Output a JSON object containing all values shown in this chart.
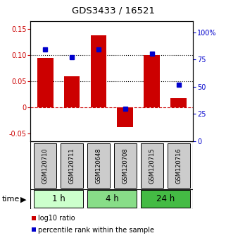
{
  "title": "GDS3433 / 16521",
  "samples": [
    "GSM120710",
    "GSM120711",
    "GSM120648",
    "GSM120708",
    "GSM120715",
    "GSM120716"
  ],
  "log10_ratio": [
    0.095,
    0.06,
    0.138,
    -0.038,
    0.1,
    0.018
  ],
  "percentile_rank": [
    84,
    77,
    84,
    30,
    80,
    52
  ],
  "bar_color": "#cc0000",
  "dot_color": "#0000cc",
  "ylim_left": [
    -0.065,
    0.165
  ],
  "ylim_right": [
    0,
    110
  ],
  "yticks_left": [
    -0.05,
    0,
    0.05,
    0.1,
    0.15
  ],
  "ytick_labels_left": [
    "-0.05",
    "0",
    "0.05",
    "0.10",
    "0.15"
  ],
  "yticks_right": [
    0,
    25,
    50,
    75,
    100
  ],
  "ytick_labels_right": [
    "0",
    "25",
    "50",
    "75",
    "100%"
  ],
  "groups": [
    {
      "label": "1 h",
      "samples": [
        0,
        1
      ],
      "color": "#ccffcc"
    },
    {
      "label": "4 h",
      "samples": [
        2,
        3
      ],
      "color": "#88dd88"
    },
    {
      "label": "24 h",
      "samples": [
        4,
        5
      ],
      "color": "#44bb44"
    }
  ],
  "time_label": "time",
  "legend_bar_label": "log10 ratio",
  "legend_dot_label": "percentile rank within the sample",
  "hlines": [
    0.05,
    0.1
  ],
  "zero_line_color": "#cc0000",
  "hline_color": "#000000",
  "sample_box_color": "#cccccc",
  "background_color": "#ffffff"
}
